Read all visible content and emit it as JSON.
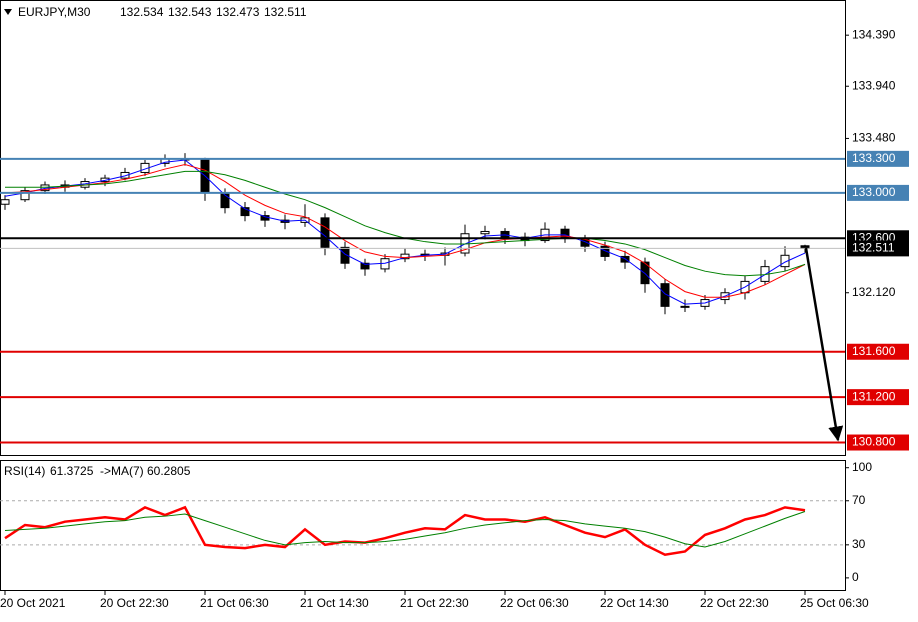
{
  "chart_data": [
    {
      "type": "candlestick",
      "title": "EURJPY,M30",
      "candles": [
        [
          132.9,
          132.98,
          132.85,
          132.94
        ],
        [
          132.94,
          133.05,
          132.92,
          133.02
        ],
        [
          133.02,
          133.1,
          132.99,
          133.07
        ],
        [
          133.07,
          133.11,
          133.01,
          133.05
        ],
        [
          133.05,
          133.13,
          133.03,
          133.1
        ],
        [
          133.1,
          133.16,
          133.06,
          133.13
        ],
        [
          133.13,
          133.22,
          133.11,
          133.18
        ],
        [
          133.18,
          133.29,
          133.15,
          133.26
        ],
        [
          133.26,
          133.34,
          133.23,
          133.3
        ],
        [
          133.3,
          133.35,
          133.24,
          133.29
        ],
        [
          133.29,
          133.31,
          132.93,
          133.0
        ],
        [
          133.0,
          133.04,
          132.82,
          132.87
        ],
        [
          132.87,
          132.92,
          132.75,
          132.8
        ],
        [
          132.8,
          132.84,
          132.7,
          132.76
        ],
        [
          132.76,
          132.81,
          132.68,
          132.74
        ],
        [
          132.74,
          132.9,
          132.7,
          132.78
        ],
        [
          132.78,
          132.82,
          132.45,
          132.52
        ],
        [
          132.52,
          132.57,
          132.33,
          132.38
        ],
        [
          132.38,
          132.42,
          132.27,
          132.33
        ],
        [
          132.33,
          132.46,
          132.3,
          132.42
        ],
        [
          132.42,
          132.51,
          132.39,
          132.46
        ],
        [
          132.46,
          132.5,
          132.4,
          132.45
        ],
        [
          132.45,
          132.52,
          132.36,
          132.47
        ],
        [
          132.47,
          132.72,
          132.44,
          132.64
        ],
        [
          132.64,
          132.71,
          132.59,
          132.66
        ],
        [
          132.66,
          132.69,
          132.55,
          132.61
        ],
        [
          132.61,
          132.65,
          132.53,
          132.58
        ],
        [
          132.58,
          132.74,
          132.56,
          132.68
        ],
        [
          132.68,
          132.71,
          132.56,
          132.6
        ],
        [
          132.6,
          132.63,
          132.48,
          132.53
        ],
        [
          132.53,
          132.57,
          132.4,
          132.44
        ],
        [
          132.44,
          132.49,
          132.33,
          132.39
        ],
        [
          132.39,
          132.43,
          132.12,
          132.2
        ],
        [
          132.2,
          132.24,
          131.93,
          132.0
        ],
        [
          132.0,
          132.06,
          131.95,
          132.0
        ],
        [
          132.0,
          132.1,
          131.97,
          132.06
        ],
        [
          132.06,
          132.16,
          132.02,
          132.12
        ],
        [
          132.12,
          132.27,
          132.06,
          132.22
        ],
        [
          132.22,
          132.41,
          132.19,
          132.35
        ],
        [
          132.35,
          132.53,
          132.31,
          132.45
        ],
        [
          132.534,
          132.543,
          132.473,
          132.511
        ]
      ],
      "series": [
        {
          "color": "#0000ff",
          "values": [
            132.97,
            133.0,
            133.04,
            133.06,
            133.08,
            133.11,
            133.15,
            133.21,
            133.27,
            133.29,
            133.15,
            132.98,
            132.86,
            132.79,
            132.75,
            132.76,
            132.62,
            132.46,
            132.37,
            132.38,
            132.43,
            132.45,
            132.46,
            132.55,
            132.62,
            132.63,
            132.6,
            132.63,
            132.63,
            132.57,
            132.49,
            132.42,
            132.29,
            132.11,
            132.02,
            132.03,
            132.09,
            132.17,
            132.28,
            132.39,
            132.47
          ]
        },
        {
          "color": "#ff0000",
          "values": [
            133.0,
            133.01,
            133.03,
            133.05,
            133.07,
            133.09,
            133.12,
            133.16,
            133.21,
            133.25,
            133.2,
            133.1,
            132.98,
            132.89,
            132.82,
            132.79,
            132.7,
            132.58,
            132.48,
            132.44,
            132.43,
            132.44,
            132.45,
            132.5,
            132.56,
            132.59,
            132.6,
            132.61,
            132.62,
            132.59,
            132.54,
            132.48,
            132.38,
            132.24,
            132.13,
            132.08,
            132.08,
            132.12,
            132.19,
            132.28,
            132.37
          ]
        },
        {
          "color": "#008000",
          "values": [
            133.05,
            133.05,
            133.05,
            133.06,
            133.07,
            133.08,
            133.1,
            133.13,
            133.16,
            133.19,
            133.19,
            133.16,
            133.11,
            133.05,
            132.99,
            132.94,
            132.87,
            132.79,
            132.71,
            132.65,
            132.6,
            132.57,
            132.55,
            132.55,
            132.56,
            132.57,
            132.58,
            132.59,
            132.6,
            132.6,
            132.58,
            132.55,
            132.5,
            132.43,
            132.36,
            132.31,
            132.28,
            132.27,
            132.28,
            132.31,
            132.37
          ]
        }
      ],
      "ylim": [
        130.69,
        134.7
      ],
      "yticks": [
        {
          "value": 134.39,
          "label": "134.390"
        },
        {
          "value": 133.94,
          "label": "133.940"
        },
        {
          "value": 133.48,
          "label": "133.480"
        },
        {
          "value": 132.12,
          "label": "132.120"
        }
      ],
      "levels": [
        {
          "value": 133.3,
          "label": "133.300",
          "color": "#4682b4",
          "box": "#4682b4"
        },
        {
          "value": 133.0,
          "label": "133.000",
          "color": "#4682b4",
          "box": "#4682b4"
        },
        {
          "value": 132.6,
          "label": "132.600",
          "color": "#000000",
          "box": "#000000"
        },
        {
          "value": 132.511,
          "label": "132.511",
          "color": "#c0c0c0",
          "box": "#000000"
        },
        {
          "value": 131.6,
          "label": "131.600",
          "color": "#e00000",
          "box": "#e00000"
        },
        {
          "value": 131.2,
          "label": "131.200",
          "color": "#e00000",
          "box": "#e00000"
        },
        {
          "value": 130.8,
          "label": "130.800",
          "color": "#e00000",
          "box": "#e00000"
        }
      ]
    },
    {
      "type": "line",
      "title": "RSI(14)",
      "ma_title": "->MA(7)",
      "categories": [
        "20 Oct 2021",
        null,
        null,
        null,
        null,
        "20 Oct 22:30",
        null,
        null,
        null,
        null,
        "21 Oct 06:30",
        null,
        null,
        null,
        null,
        "21 Oct 14:30",
        null,
        null,
        null,
        null,
        "21 Oct 22:30",
        null,
        null,
        null,
        null,
        "22 Oct 06:30",
        null,
        null,
        null,
        null,
        "22 Oct 14:30",
        null,
        null,
        null,
        null,
        "22 Oct 22:30",
        null,
        null,
        null,
        null,
        "25 Oct 06:30"
      ],
      "series": [
        {
          "color": "#ff0000",
          "values": [
            36,
            48,
            46,
            51,
            53,
            55,
            53,
            64,
            57,
            64,
            30,
            28,
            27,
            30,
            28,
            44,
            30,
            33,
            32,
            36,
            41,
            45,
            44,
            57,
            53,
            53,
            51,
            55,
            48,
            41,
            37,
            44,
            30,
            21,
            24,
            39,
            45,
            53,
            57,
            64,
            61.3725
          ]
        },
        {
          "color": "#008000",
          "values": [
            43,
            44,
            45,
            47,
            49,
            51,
            52,
            55,
            56,
            58,
            52,
            46,
            40,
            34,
            30,
            32,
            33,
            32,
            32,
            33,
            35,
            38,
            41,
            45,
            48,
            50,
            52,
            53,
            52,
            49,
            47,
            45,
            42,
            37,
            31,
            28,
            33,
            40,
            47,
            54,
            60.2805
          ]
        }
      ],
      "ylim": [
        -11,
        107
      ],
      "yticks": [
        100,
        70,
        30,
        0
      ],
      "levels": [
        70,
        30
      ]
    }
  ]
}
